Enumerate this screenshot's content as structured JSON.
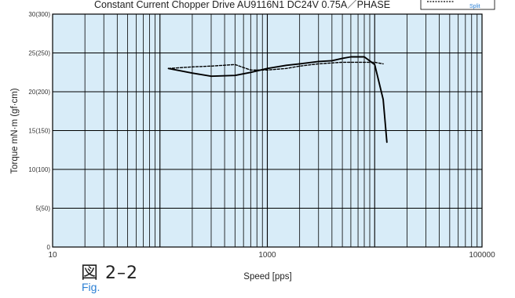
{
  "header": {
    "subtitle": "Constant Current Chopper Drive    AU9116N1 DC24V 0.75A／PHASE"
  },
  "legend": {
    "split_label": "Split"
  },
  "figure": {
    "label_jp": "図 2–2",
    "label_en": "Fig."
  },
  "chart_data": {
    "type": "line",
    "title": "",
    "subtitle": "Constant Current Chopper Drive    AU9116N1 DC24V 0.75A／PHASE",
    "xlabel": "Speed [pps]",
    "ylabel": "Torque mN·m (gf·cm)",
    "x_scale": "log",
    "xlim": [
      10,
      100000
    ],
    "ylim": [
      0,
      30
    ],
    "grid": true,
    "background_color": "#d8ecf8",
    "grid_color": "#000000",
    "x_tick_labels": [
      {
        "value": 10,
        "label": "10"
      },
      {
        "value": 1000,
        "label": "1000"
      },
      {
        "value": 100000,
        "label": "100000"
      }
    ],
    "y_tick_labels": [
      {
        "value": 0,
        "label": "0"
      },
      {
        "value": 5,
        "label": "5(50)"
      },
      {
        "value": 10,
        "label": "10(100)"
      },
      {
        "value": 15,
        "label": "15(150)"
      },
      {
        "value": 20,
        "label": "20(200)"
      },
      {
        "value": 25,
        "label": "25(250)"
      },
      {
        "value": 30,
        "label": "30(300)"
      }
    ],
    "series": [
      {
        "style": "solid",
        "color": "#000000",
        "x": [
          120,
          200,
          300,
          500,
          700,
          1000,
          1500,
          2000,
          3000,
          4000,
          5000,
          6000,
          8000,
          10000,
          12000,
          13000
        ],
        "y": [
          23.0,
          22.4,
          22.0,
          22.1,
          22.5,
          23.0,
          23.4,
          23.6,
          23.9,
          24.0,
          24.3,
          24.5,
          24.5,
          23.5,
          19.0,
          13.5
        ]
      },
      {
        "style": "dashed",
        "color": "#000000",
        "x": [
          120,
          200,
          300,
          500,
          700,
          1000,
          1500,
          2000,
          3000,
          5000,
          8000,
          10000,
          12000
        ],
        "y": [
          23.0,
          23.2,
          23.3,
          23.5,
          22.8,
          22.8,
          23.0,
          23.3,
          23.6,
          23.8,
          23.8,
          23.8,
          23.6
        ]
      }
    ]
  }
}
